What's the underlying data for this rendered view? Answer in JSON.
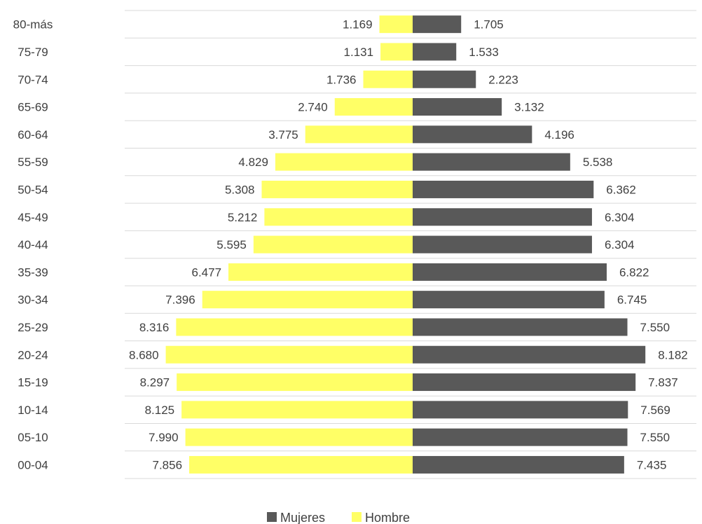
{
  "chart_data": {
    "type": "bar",
    "orientation": "horizontal",
    "layout": "population-pyramid",
    "categories": [
      "80-más",
      "75-79",
      "70-74",
      "65-69",
      "60-64",
      "55-59",
      "50-54",
      "45-49",
      "40-44",
      "35-39",
      "30-34",
      "25-29",
      "20-24",
      "15-19",
      "10-14",
      "05-10",
      "00-04"
    ],
    "series": [
      {
        "name": "Mujeres",
        "color": "#595959",
        "side": "right",
        "values": [
          1705,
          1533,
          2223,
          3132,
          4196,
          5538,
          6362,
          6304,
          6304,
          6822,
          6745,
          7550,
          8182,
          7837,
          7569,
          7550,
          7435
        ],
        "labels": [
          "1.705",
          "1.533",
          "2.223",
          "3.132",
          "4.196",
          "5.538",
          "6.362",
          "6.304",
          "6.304",
          "6.822",
          "6.745",
          "7.550",
          "8.182",
          "7.837",
          "7.569",
          "7.550",
          "7.435"
        ]
      },
      {
        "name": "Hombre",
        "color": "#ffff66",
        "side": "left",
        "values": [
          1169,
          1131,
          1736,
          2740,
          3775,
          4829,
          5308,
          5212,
          5595,
          6477,
          7396,
          8316,
          8680,
          8297,
          8125,
          7990,
          7856
        ],
        "labels": [
          "1.169",
          "1.131",
          "1.736",
          "2.740",
          "3.775",
          "4.829",
          "5.308",
          "5.212",
          "5.595",
          "6.477",
          "7.396",
          "8.316",
          "8.680",
          "8.297",
          "8.125",
          "7.990",
          "7.856"
        ]
      }
    ],
    "legend_position": "bottom",
    "grid": true
  }
}
